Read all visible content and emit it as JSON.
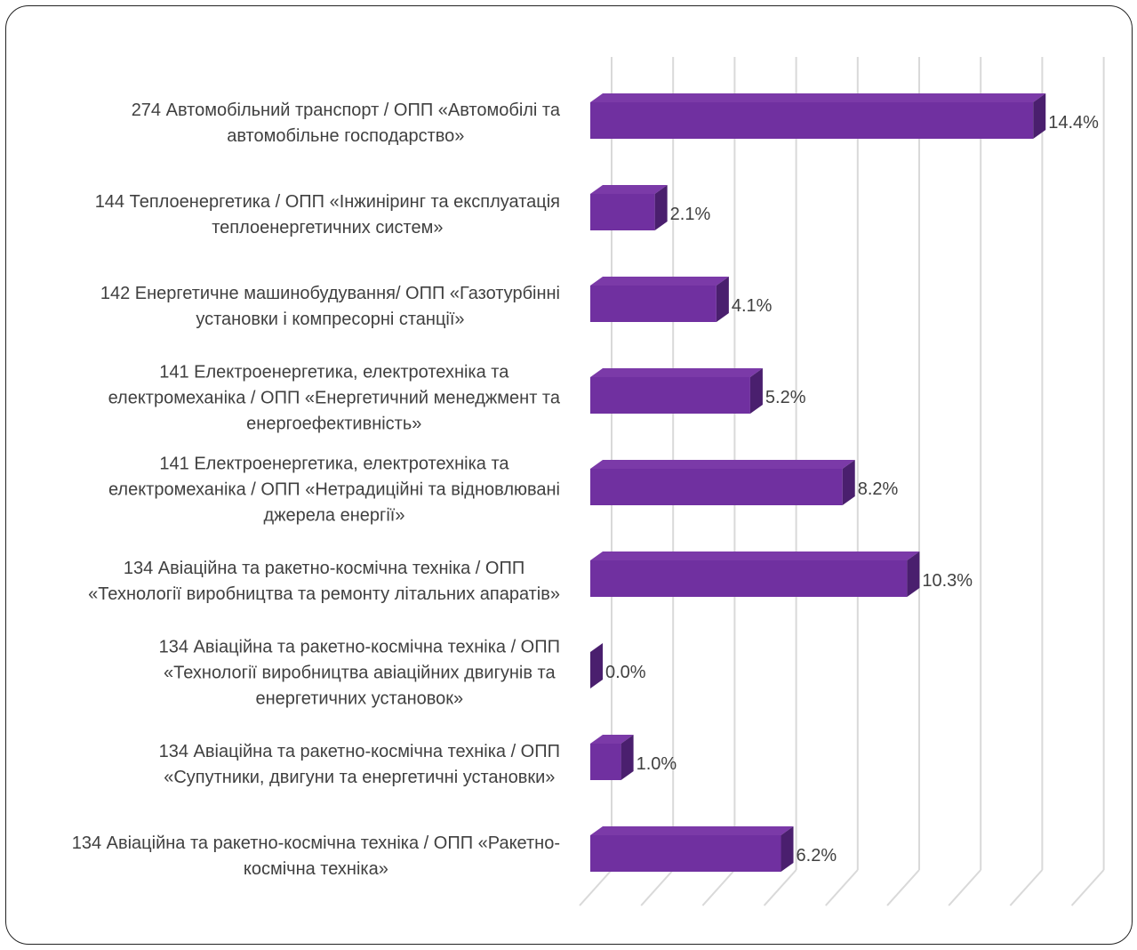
{
  "chart_data": {
    "type": "bar",
    "orientation": "horizontal",
    "style": "3d",
    "bar_color": "#7030a0",
    "xlim": [
      0,
      16
    ],
    "grid": true,
    "categories": [
      [
        "274 Автомобільний транспорт / ОПП «Автомобілі та",
        "автомобільне господарство»"
      ],
      [
        "144 Теплоенергетика / ОПП «Інжиніринг та експлуатація",
        "теплоенергетичних систем»"
      ],
      [
        "142 Енергетичне машинобудування/ ОПП «Газотурбінні",
        "установки і компресорні станції»"
      ],
      [
        "141 Електроенергетика, електротехніка та",
        "електромеханіка / ОПП «Енергетичний менеджмент та",
        "енергоефективність»"
      ],
      [
        "141 Електроенергетика, електротехніка та",
        "електромеханіка / ОПП «Нетрадиційні та відновлювані",
        "джерела енергії»"
      ],
      [
        "134 Авіаційна та ракетно-космічна техніка / ОПП",
        "«Технології виробництва та ремонту літальних апаратів»"
      ],
      [
        "134 Авіаційна та ракетно-космічна техніка / ОПП",
        "«Технології виробництва авіаційних двигунів та",
        "енергетичних установок»"
      ],
      [
        "134 Авіаційна та ракетно-космічна техніка / ОПП",
        "«Супутники, двигуни та енергетичні установки»"
      ],
      [
        "134 Авіаційна та ракетно-космічна техніка / ОПП «Ракетно-",
        "космічна техніка»"
      ]
    ],
    "values": [
      14.4,
      2.1,
      4.1,
      5.2,
      8.2,
      10.3,
      0.0,
      1.0,
      6.2
    ],
    "data_labels": [
      "14.4%",
      "2.1%",
      "4.1%",
      "5.2%",
      "8.2%",
      "10.3%",
      "0.0%",
      "1.0%",
      "6.2%"
    ]
  }
}
